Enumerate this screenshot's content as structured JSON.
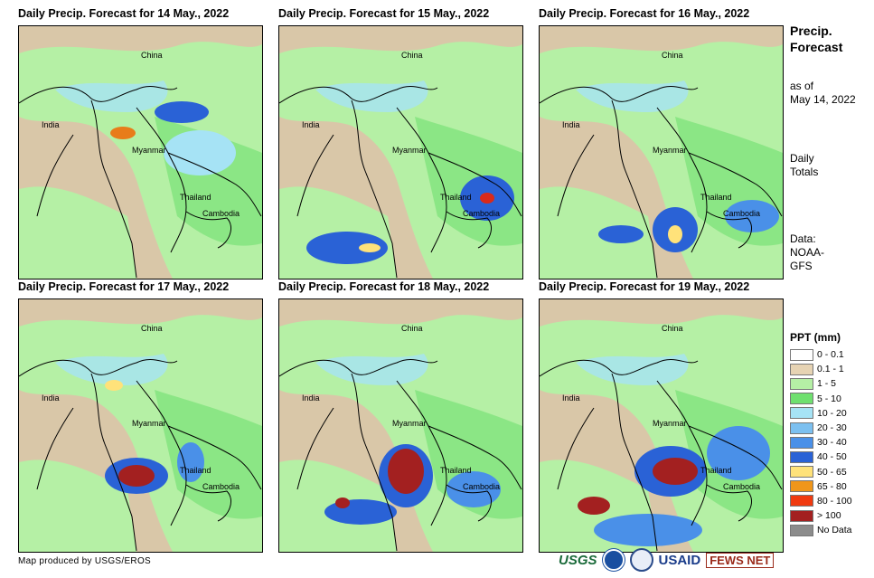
{
  "panels": [
    {
      "title": "Daily Precip. Forecast for 14 May., 2022",
      "storms": [
        [
          115,
          118,
          14,
          7,
          "#e87c1a"
        ],
        [
          180,
          95,
          30,
          12,
          "#2a62d6"
        ],
        [
          200,
          140,
          40,
          25,
          "#a6e3f5"
        ]
      ]
    },
    {
      "title": "Daily Precip. Forecast for 15 May., 2022",
      "storms": [
        [
          75,
          245,
          45,
          18,
          "#2a62d6"
        ],
        [
          100,
          245,
          12,
          5,
          "#ffe27a"
        ],
        [
          230,
          190,
          30,
          25,
          "#2a62d6"
        ],
        [
          230,
          190,
          8,
          6,
          "#d92a1a"
        ]
      ]
    },
    {
      "title": "Daily Precip. Forecast for 16 May., 2022",
      "storms": [
        [
          150,
          225,
          25,
          25,
          "#2a62d6"
        ],
        [
          150,
          230,
          8,
          10,
          "#ffe27a"
        ],
        [
          90,
          230,
          25,
          10,
          "#2a62d6"
        ],
        [
          235,
          210,
          30,
          18,
          "#4a90e8"
        ]
      ]
    },
    {
      "title": "Daily Precip. Forecast for 17 May., 2022",
      "storms": [
        [
          130,
          195,
          35,
          20,
          "#2a62d6"
        ],
        [
          130,
          195,
          20,
          12,
          "#a32020"
        ],
        [
          190,
          180,
          15,
          22,
          "#4a90e8"
        ],
        [
          105,
          95,
          10,
          6,
          "#ffe27a"
        ]
      ]
    },
    {
      "title": "Daily Precip. Forecast for 18 May., 2022",
      "storms": [
        [
          140,
          195,
          30,
          35,
          "#2a62d6"
        ],
        [
          140,
          190,
          20,
          25,
          "#a32020"
        ],
        [
          90,
          235,
          40,
          14,
          "#2a62d6"
        ],
        [
          70,
          225,
          8,
          6,
          "#a32020"
        ],
        [
          215,
          210,
          30,
          20,
          "#4a90e8"
        ]
      ]
    },
    {
      "title": "Daily Precip. Forecast for 19 May., 2022",
      "storms": [
        [
          145,
          190,
          40,
          28,
          "#2a62d6"
        ],
        [
          150,
          190,
          25,
          15,
          "#a32020"
        ],
        [
          60,
          228,
          18,
          10,
          "#a32020"
        ],
        [
          220,
          170,
          35,
          30,
          "#4a90e8"
        ],
        [
          120,
          255,
          60,
          18,
          "#4a90e8"
        ]
      ]
    }
  ],
  "map_labels": {
    "china": "China",
    "india": "India",
    "myanmar": "Myanmar",
    "thailand": "Thailand",
    "cambodia": "Cambodia"
  },
  "side": {
    "title_line1": "Precip.",
    "title_line2": "Forecast",
    "asof_line1": "as of",
    "asof_line2": "May 14, 2022",
    "totals_line1": "Daily",
    "totals_line2": "Totals",
    "data_line1": "Data:",
    "data_line2": "NOAA-",
    "data_line3": "GFS"
  },
  "legend": {
    "title": "PPT (mm)",
    "items": [
      {
        "label": "0 - 0.1",
        "color": "#ffffff"
      },
      {
        "label": "0.1 - 1",
        "color": "#e6d3b3"
      },
      {
        "label": "1 - 5",
        "color": "#b5f0a5"
      },
      {
        "label": "5 - 10",
        "color": "#6fe06f"
      },
      {
        "label": "10 - 20",
        "color": "#a6e3f5"
      },
      {
        "label": "20 - 30",
        "color": "#7cc0f0"
      },
      {
        "label": "30 - 40",
        "color": "#4a90e8"
      },
      {
        "label": "40 - 50",
        "color": "#2a62d6"
      },
      {
        "label": "50 - 65",
        "color": "#ffe27a"
      },
      {
        "label": "65 - 80",
        "color": "#f0961a"
      },
      {
        "label": "80 - 100",
        "color": "#f03a10"
      },
      {
        "label": "> 100",
        "color": "#a32020"
      },
      {
        "label": "No Data",
        "color": "#8c8c8c"
      }
    ]
  },
  "credit": "Map produced by USGS/EROS",
  "logos": {
    "usgs": "USGS",
    "usaid": "USAID",
    "fews": "FEWS NET"
  }
}
